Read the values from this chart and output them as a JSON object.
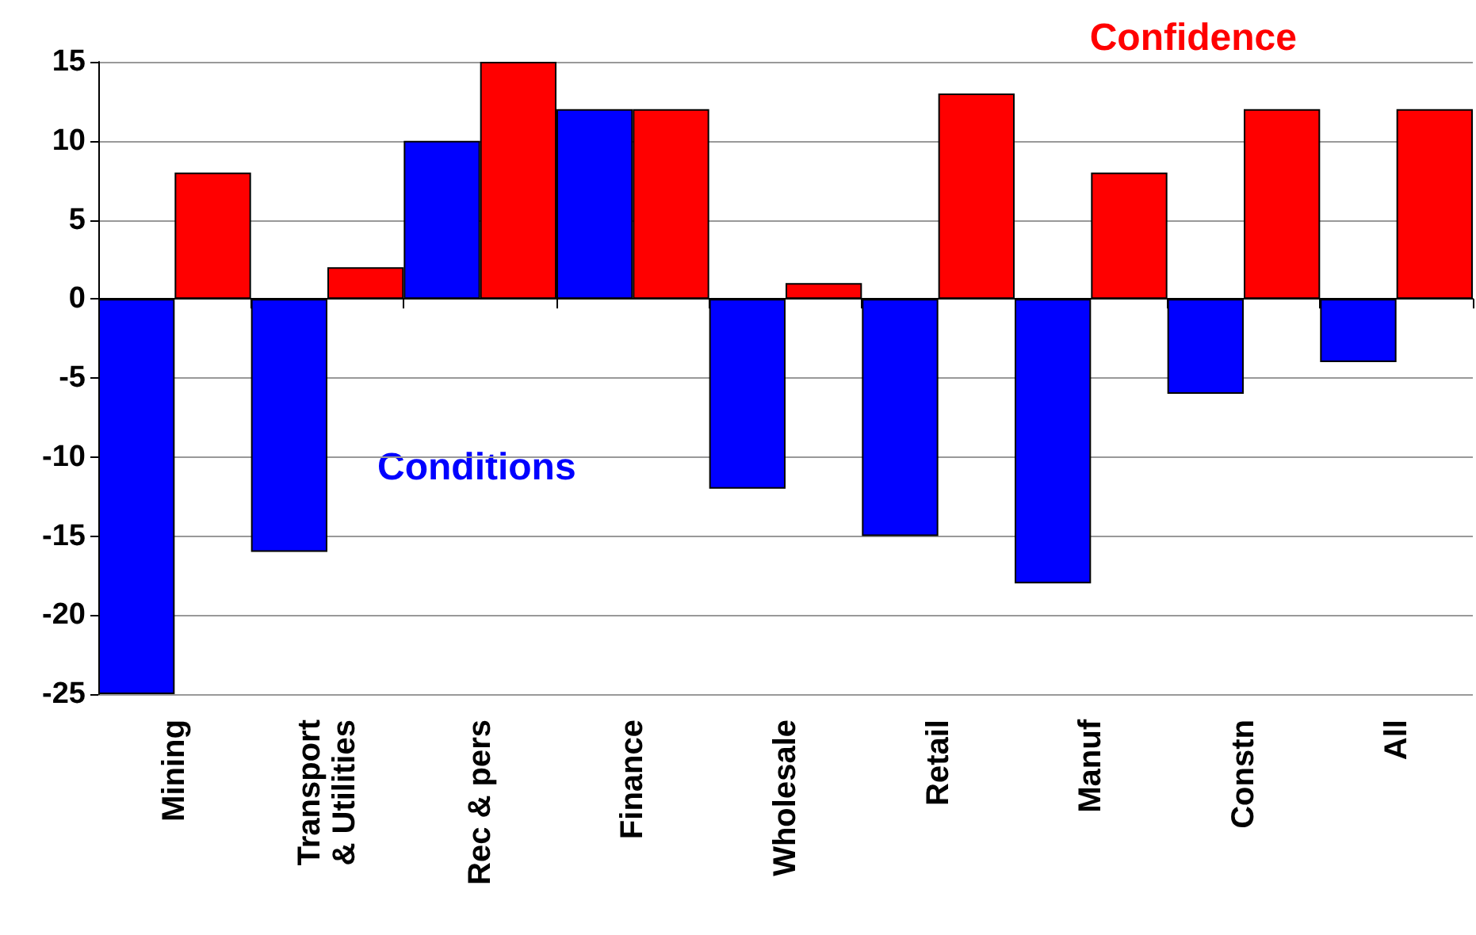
{
  "chart_data": {
    "type": "bar",
    "categories": [
      "Mining",
      "Transport\n& Utilities",
      "Rec & pers",
      "Finance",
      "Wholesale",
      "Retail",
      "Manuf",
      "Constn",
      "All"
    ],
    "series": [
      {
        "name": "Conditions",
        "color": "#0000ff",
        "values": [
          -25,
          -16,
          10,
          12,
          -12,
          -15,
          -18,
          -6,
          -4
        ]
      },
      {
        "name": "Confidence",
        "color": "#ff0000",
        "values": [
          8,
          2,
          15,
          12,
          1,
          13,
          8,
          12,
          12
        ]
      }
    ],
    "ylim": [
      -25,
      15
    ],
    "yticks": [
      -25,
      -20,
      -15,
      -10,
      -5,
      0,
      5,
      10,
      15
    ],
    "grid": "y"
  }
}
